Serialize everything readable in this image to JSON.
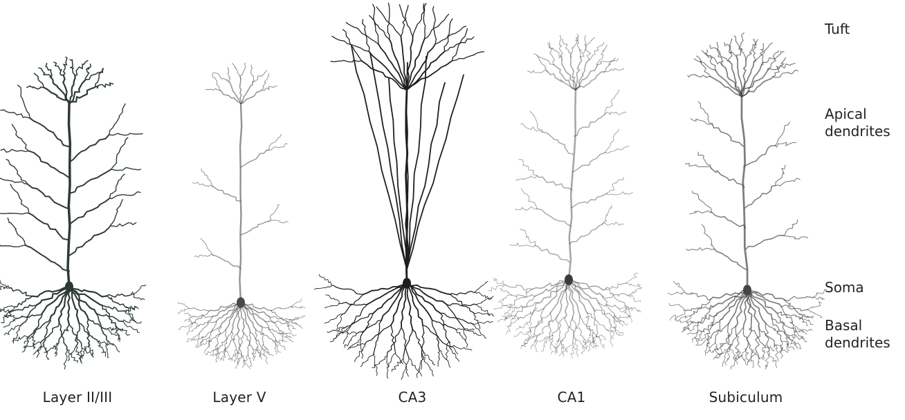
{
  "figure": {
    "neurons": [
      {
        "id": "layer-2-3",
        "label": "Layer II/III",
        "color": "#2d3a34",
        "fade": 1.0
      },
      {
        "id": "layer-5",
        "label": "Layer V",
        "color": "#4a4a4a",
        "fade": 0.6
      },
      {
        "id": "ca3",
        "label": "CA3",
        "color": "#1e1e1e",
        "fade": 1.0
      },
      {
        "id": "ca1",
        "label": "CA1",
        "color": "#3a3a3a",
        "fade": 0.45
      },
      {
        "id": "subiculum",
        "label": "Subiculum",
        "color": "#444444",
        "fade": 0.7
      }
    ],
    "regions": {
      "tuft": "Tuft",
      "apical_line1": "Apical",
      "apical_line2": "dendrites",
      "soma": "Soma",
      "basal_line1": "Basal",
      "basal_line2": "dendrites"
    }
  }
}
